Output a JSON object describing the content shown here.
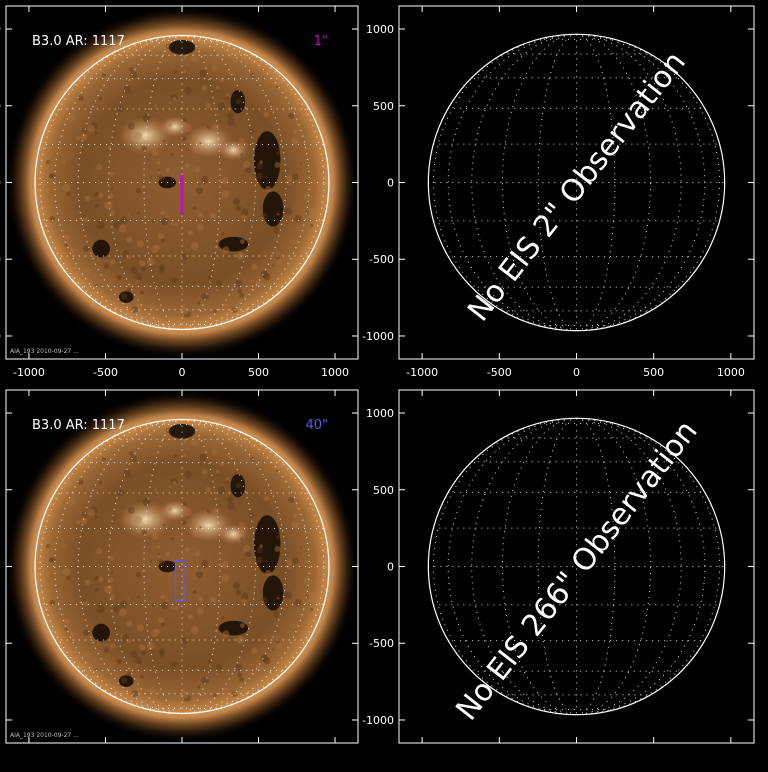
{
  "panels": [
    {
      "id": "top-left",
      "type": "image",
      "label": "B3.0 AR: 1117",
      "slit_label": "1\"",
      "slit_color": "#c010c0",
      "slit_style": "filled",
      "slit_arcsec": {
        "x": 0,
        "y": -80,
        "width": 20,
        "height": 260
      },
      "footer": "AIA_193 2010-09-27 ...",
      "x_ticks": [
        "-1000",
        "-500",
        "0",
        "500",
        "1000"
      ],
      "y_ticks": [
        "1000",
        "500",
        "0",
        "-500",
        "-1000"
      ],
      "show_x_axis": true,
      "show_y_axis": false
    },
    {
      "id": "top-right",
      "type": "grid",
      "message": "No EIS 2\" Observation",
      "x_ticks": [
        "-1000",
        "-500",
        "0",
        "500",
        "1000"
      ],
      "y_ticks": [
        "1000",
        "500",
        "0",
        "-500",
        "-1000"
      ],
      "show_x_axis": true,
      "show_y_axis": true
    },
    {
      "id": "bottom-left",
      "type": "image",
      "label": "B3.0 AR: 1117",
      "slit_label": "40\"",
      "slit_color": "#5a5ae0",
      "slit_style": "outline",
      "slit_arcsec": {
        "x": -15,
        "y": -95,
        "width": 55,
        "height": 260
      },
      "footer": "AIA_193 2010-09-27 ...",
      "x_ticks": [],
      "y_ticks": [],
      "show_x_axis": false,
      "show_y_axis": false
    },
    {
      "id": "bottom-right",
      "type": "grid",
      "message": "No EIS 266\" Observation",
      "x_ticks": [],
      "y_ticks": [
        "1000",
        "500",
        "0",
        "-500",
        "-1000"
      ],
      "show_x_axis": false,
      "show_y_axis": true
    }
  ],
  "colors": {
    "background": "#000000",
    "sun_core": "#8a5a2c",
    "sun_mid": "#6e4722",
    "corona": "#d8a060",
    "limb_glow": "#f4c888",
    "coronal_hole": "#1a0e06",
    "grid": "#ffffff"
  }
}
